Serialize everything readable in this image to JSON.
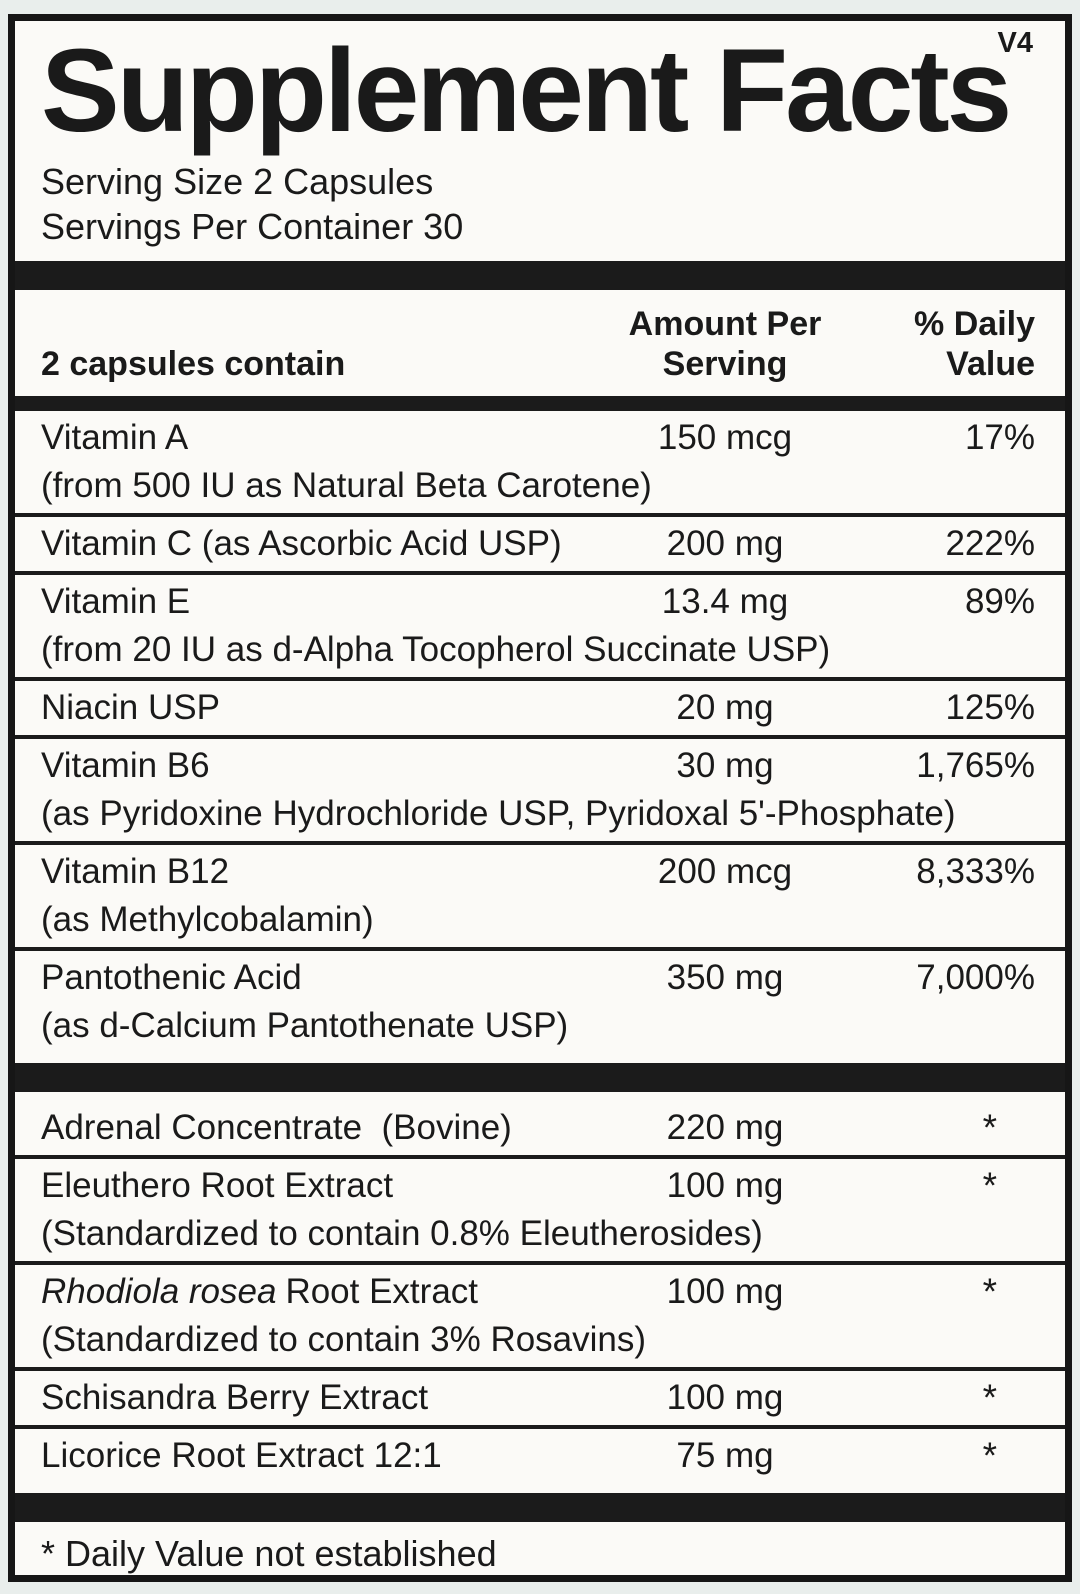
{
  "label": {
    "version_tag": "V4",
    "title": "Supplement Facts",
    "serving_size": "Serving Size 2 Capsules",
    "servings_per_container": "Servings Per Container 30",
    "header": {
      "name_col": "2 capsules contain",
      "amount_col_line1": "Amount Per",
      "amount_col_line2": "Serving",
      "dv_col_line1": "% Daily",
      "dv_col_line2": "Value"
    },
    "nutrients": [
      {
        "name": "Vitamin A",
        "detail": "(from 500 IU as Natural Beta Carotene)",
        "amount": "150 mcg",
        "dv": "17%"
      },
      {
        "name": "Vitamin C (as Ascorbic Acid USP)",
        "amount": "200 mg",
        "dv": "222%"
      },
      {
        "name": "Vitamin E",
        "detail": "(from 20 IU as d-Alpha Tocopherol Succinate USP)",
        "amount": "13.4 mg",
        "dv": "89%"
      },
      {
        "name": "Niacin USP",
        "amount": "20 mg",
        "dv": "125%"
      },
      {
        "name": "Vitamin B6",
        "detail": "(as Pyridoxine Hydrochloride USP, Pyridoxal 5'-Phosphate)",
        "amount": "30 mg",
        "dv": "1,765%"
      },
      {
        "name": "Vitamin B12",
        "detail": "(as Methylcobalamin)",
        "amount": "200 mcg",
        "dv": "8,333%"
      },
      {
        "name": "Pantothenic Acid",
        "detail": "(as d-Calcium Pantothenate USP)",
        "amount": "350 mg",
        "dv": "7,000%"
      }
    ],
    "herbals": [
      {
        "name": "Adrenal Concentrate  (Bovine)",
        "amount": "220 mg",
        "dv": "*"
      },
      {
        "name": "Eleuthero Root Extract",
        "detail": "(Standardized to contain 0.8% Eleutherosides)",
        "amount": "100 mg",
        "dv": "*"
      },
      {
        "name_italic": "Rhodiola rosea",
        "name": "Root Extract",
        "detail": "(Standardized to contain 3% Rosavins)",
        "amount": "100 mg",
        "dv": "*"
      },
      {
        "name": "Schisandra Berry Extract",
        "amount": "100 mg",
        "dv": "*"
      },
      {
        "name": "Licorice Root Extract 12:1",
        "amount": "75 mg",
        "dv": "*"
      }
    ],
    "footnote": "* Daily Value not established"
  },
  "colors": {
    "page_background": "#e9eeec",
    "label_background": "#fbfaf7",
    "text": "#1a1a1a",
    "bar": "#1b1b1b",
    "border": "#161616"
  }
}
